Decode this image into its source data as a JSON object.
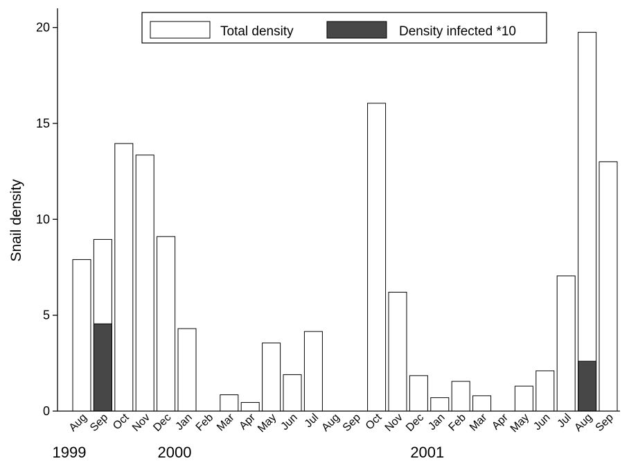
{
  "chart_data": {
    "type": "bar",
    "ylabel": "Snail density",
    "xlabel": "",
    "ylim": [
      0,
      21
    ],
    "yticks": [
      0,
      5,
      10,
      15,
      20
    ],
    "grid": false,
    "legend_position": "top",
    "categories": [
      "Aug",
      "Sep",
      "Oct",
      "Nov",
      "Dec",
      "Jan",
      "Feb",
      "Mar",
      "Apr",
      "May",
      "Jun",
      "Jul",
      "Aug",
      "Sep",
      "Oct",
      "Nov",
      "Dec",
      "Jan",
      "Feb",
      "Mar",
      "Apr",
      "May",
      "Jun",
      "Jul",
      "Aug",
      "Sep"
    ],
    "year_labels": [
      {
        "label": "1999",
        "category_index": 0
      },
      {
        "label": "2000",
        "category_index": 5
      },
      {
        "label": "2001",
        "category_index": 17
      }
    ],
    "series": [
      {
        "name": "Total density",
        "color": "#ffffff",
        "values": [
          7.9,
          8.95,
          13.95,
          13.35,
          9.1,
          4.3,
          0,
          0.85,
          0.45,
          3.55,
          1.9,
          4.15,
          0,
          0,
          16.05,
          6.2,
          1.85,
          0.7,
          1.55,
          0.8,
          0,
          1.3,
          2.1,
          7.05,
          19.75,
          13.0
        ]
      },
      {
        "name": "Density infected *10",
        "color": "#474747",
        "values": [
          0,
          4.55,
          0,
          0,
          0,
          0,
          0,
          0,
          0,
          0,
          0,
          0,
          0,
          0,
          0,
          0,
          0,
          0,
          0,
          0,
          0,
          0,
          0,
          0,
          2.6,
          0
        ]
      }
    ]
  }
}
